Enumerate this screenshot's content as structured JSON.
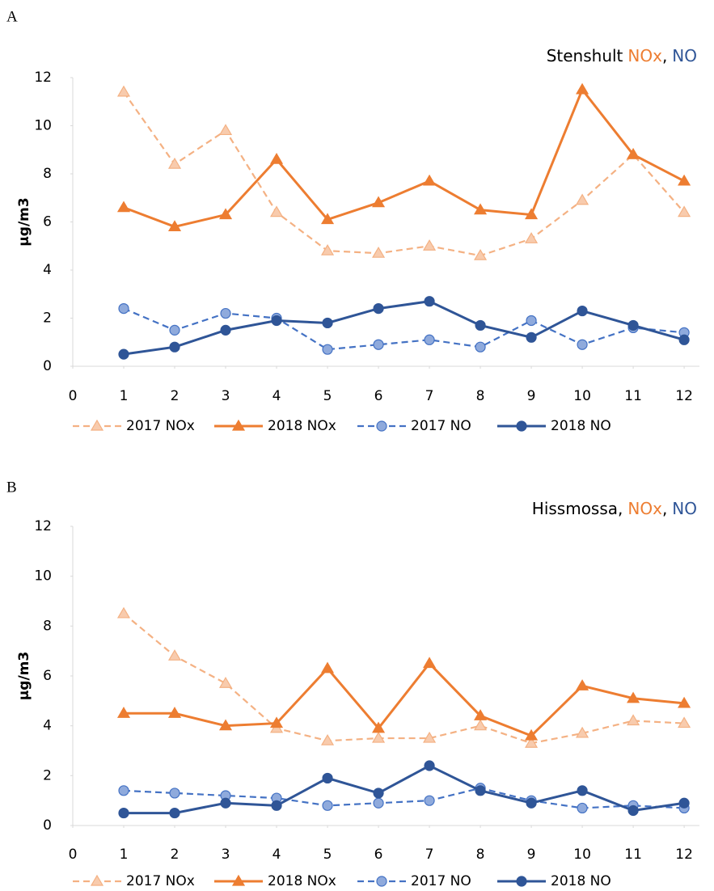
{
  "panels": [
    "A",
    "B"
  ],
  "chart_data": [
    {
      "type": "line",
      "title": [
        {
          "text": "Stenshult"
        },
        {
          "text": "NOx",
          "color": "#ed7d31"
        },
        {
          "text": ","
        },
        {
          "text": "NO",
          "color": "#2f5597"
        }
      ],
      "ylabel": "µg/m3",
      "x": [
        1,
        2,
        3,
        4,
        5,
        6,
        7,
        8,
        9,
        10,
        11,
        12
      ],
      "xlim": [
        0,
        12.3
      ],
      "xticks": [
        0,
        1,
        2,
        3,
        4,
        5,
        6,
        7,
        8,
        9,
        10,
        11,
        12
      ],
      "ylim": [
        0,
        12
      ],
      "yticks": [
        0,
        2,
        4,
        6,
        8,
        10,
        12
      ],
      "grid": false,
      "series": [
        {
          "name": "2017 NOx",
          "color": "#f4b183",
          "marker_fill": "#f8cbad",
          "dash": true,
          "marker": "triangle",
          "values": [
            11.4,
            8.4,
            9.8,
            6.4,
            4.8,
            4.7,
            5.0,
            4.6,
            5.3,
            6.9,
            8.8,
            6.4
          ]
        },
        {
          "name": "2018 NOx",
          "color": "#ed7d31",
          "marker_fill": "#ed7d31",
          "dash": false,
          "marker": "triangle",
          "values": [
            6.6,
            5.8,
            6.3,
            8.6,
            6.1,
            6.8,
            7.7,
            6.5,
            6.3,
            11.5,
            8.8,
            7.7
          ]
        },
        {
          "name": "2017 NO",
          "color": "#4472c4",
          "marker_fill": "#8faadc",
          "dash": true,
          "marker": "circle",
          "values": [
            2.4,
            1.5,
            2.2,
            2.0,
            0.7,
            0.9,
            1.1,
            0.8,
            1.9,
            0.9,
            1.6,
            1.4
          ]
        },
        {
          "name": "2018 NO",
          "color": "#2f5597",
          "marker_fill": "#2f5597",
          "dash": false,
          "marker": "circle",
          "values": [
            0.5,
            0.8,
            1.5,
            1.9,
            1.8,
            2.4,
            2.7,
            1.7,
            1.2,
            2.3,
            1.7,
            1.1
          ]
        }
      ]
    },
    {
      "type": "line",
      "title": [
        {
          "text": "Hissmossa,"
        },
        {
          "text": "NOx",
          "color": "#ed7d31"
        },
        {
          "text": ","
        },
        {
          "text": "NO",
          "color": "#2f5597"
        }
      ],
      "ylabel": "µg/m3",
      "x": [
        1,
        2,
        3,
        4,
        5,
        6,
        7,
        8,
        9,
        10,
        11,
        12
      ],
      "xlim": [
        0,
        12.3
      ],
      "xticks": [
        0,
        1,
        2,
        3,
        4,
        5,
        6,
        7,
        8,
        9,
        10,
        11,
        12
      ],
      "ylim": [
        0,
        12
      ],
      "yticks": [
        0,
        2,
        4,
        6,
        8,
        10,
        12
      ],
      "grid": false,
      "series": [
        {
          "name": "2017 NOx",
          "color": "#f4b183",
          "marker_fill": "#f8cbad",
          "dash": true,
          "marker": "triangle",
          "values": [
            8.5,
            6.8,
            5.7,
            3.9,
            3.4,
            3.5,
            3.5,
            4.0,
            3.3,
            3.7,
            4.2,
            4.1
          ]
        },
        {
          "name": "2018 NOx",
          "color": "#ed7d31",
          "marker_fill": "#ed7d31",
          "dash": false,
          "marker": "triangle",
          "values": [
            4.5,
            4.5,
            4.0,
            4.1,
            6.3,
            3.9,
            6.5,
            4.4,
            3.6,
            5.6,
            5.1,
            4.9
          ]
        },
        {
          "name": "2017 NO",
          "color": "#4472c4",
          "marker_fill": "#8faadc",
          "dash": true,
          "marker": "circle",
          "values": [
            1.4,
            1.3,
            1.2,
            1.1,
            0.8,
            0.9,
            1.0,
            1.5,
            1.0,
            0.7,
            0.8,
            0.7
          ]
        },
        {
          "name": "2018 NO",
          "color": "#2f5597",
          "marker_fill": "#2f5597",
          "dash": false,
          "marker": "circle",
          "values": [
            0.5,
            0.5,
            0.9,
            0.8,
            1.9,
            1.3,
            2.4,
            1.4,
            0.9,
            1.4,
            0.6,
            0.9
          ]
        }
      ]
    }
  ]
}
